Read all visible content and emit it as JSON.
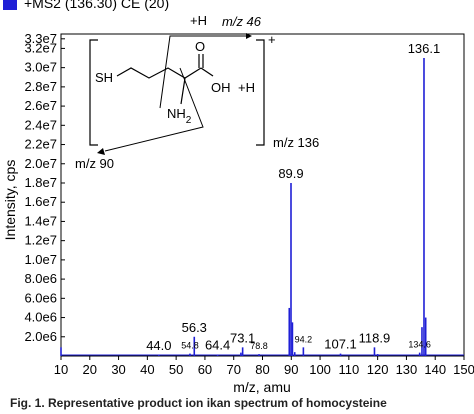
{
  "legend": {
    "label": "+MS2 (136.30) CE (20)",
    "color": "#1f1fd6"
  },
  "caption": "Fig. 1. Representative product ion ikan spectrum of homocysteine",
  "structure": {
    "sh": "SH",
    "nh2_n": "NH",
    "nh2_sub": "2",
    "oh": "OH",
    "o": "O",
    "plus_h_top": "+H",
    "plus_h_right": "+H",
    "charge": "+",
    "frag_top": "m/z 46",
    "frag_left": "m/z 90",
    "frag_right": "m/z 136"
  },
  "chart_data": {
    "type": "line",
    "title": "",
    "xlabel": "m/z, amu",
    "ylabel": "Intensity, cps",
    "xlim": [
      10,
      150
    ],
    "ylim": [
      0,
      33500000
    ],
    "x_ticks": [
      10,
      20,
      30,
      40,
      50,
      60,
      70,
      80,
      90,
      100,
      110,
      120,
      130,
      140,
      150
    ],
    "y_ticks": [
      {
        "v": 2000000,
        "label": "2.0e6"
      },
      {
        "v": 4000000,
        "label": "4.0e6"
      },
      {
        "v": 6000000,
        "label": "6.0e6"
      },
      {
        "v": 8000000,
        "label": "8.0e6"
      },
      {
        "v": 10000000,
        "label": "1.0e7"
      },
      {
        "v": 12000000,
        "label": "1.2e7"
      },
      {
        "v": 14000000,
        "label": "1.4e7"
      },
      {
        "v": 16000000,
        "label": "1.6e7"
      },
      {
        "v": 18000000,
        "label": "1.8e7"
      },
      {
        "v": 20000000,
        "label": "2.0e7"
      },
      {
        "v": 22000000,
        "label": "2.2e7"
      },
      {
        "v": 24000000,
        "label": "2.4e7"
      },
      {
        "v": 26000000,
        "label": "2.6e7"
      },
      {
        "v": 28000000,
        "label": "2.8e7"
      },
      {
        "v": 30000000,
        "label": "3.0e7"
      },
      {
        "v": 32000000,
        "label": "3.2e7"
      },
      {
        "v": 33000000,
        "label": "3.3e7"
      }
    ],
    "grid": false,
    "legend_position": "top-left",
    "series_color": "#1f1fd6",
    "peaks": [
      {
        "x": 10.0,
        "y": 900000
      },
      {
        "x": 44.0,
        "y": 100000
      },
      {
        "x": 54.8,
        "y": 250000
      },
      {
        "x": 56.3,
        "y": 2000000
      },
      {
        "x": 64.4,
        "y": 150000
      },
      {
        "x": 72.5,
        "y": 350000
      },
      {
        "x": 73.1,
        "y": 900000
      },
      {
        "x": 78.8,
        "y": 200000
      },
      {
        "x": 89.3,
        "y": 5000000
      },
      {
        "x": 89.9,
        "y": 18000000
      },
      {
        "x": 90.4,
        "y": 3500000
      },
      {
        "x": 91.2,
        "y": 400000
      },
      {
        "x": 94.2,
        "y": 900000
      },
      {
        "x": 107.1,
        "y": 250000
      },
      {
        "x": 118.9,
        "y": 900000
      },
      {
        "x": 120.0,
        "y": 200000
      },
      {
        "x": 134.6,
        "y": 350000
      },
      {
        "x": 135.4,
        "y": 3000000
      },
      {
        "x": 136.1,
        "y": 31000000
      },
      {
        "x": 136.7,
        "y": 4000000
      }
    ],
    "annotations": [
      {
        "x": 44.0,
        "y": 100000,
        "label": "44.0",
        "size": "normal"
      },
      {
        "x": 54.8,
        "y": 250000,
        "label": "54.8",
        "size": "small"
      },
      {
        "x": 56.3,
        "y": 2000000,
        "label": "56.3",
        "size": "normal"
      },
      {
        "x": 64.4,
        "y": 150000,
        "label": "64.4",
        "size": "normal"
      },
      {
        "x": 73.1,
        "y": 900000,
        "label": "73.1",
        "size": "normal"
      },
      {
        "x": 78.8,
        "y": 200000,
        "label": "78.8",
        "size": "small"
      },
      {
        "x": 89.9,
        "y": 18000000,
        "label": "89.9",
        "size": "normal"
      },
      {
        "x": 94.2,
        "y": 900000,
        "label": "94.2",
        "size": "small"
      },
      {
        "x": 107.1,
        "y": 250000,
        "label": "107.1",
        "size": "normal"
      },
      {
        "x": 118.9,
        "y": 900000,
        "label": "118.9",
        "size": "normal"
      },
      {
        "x": 134.6,
        "y": 350000,
        "label": "134.6",
        "size": "small"
      },
      {
        "x": 136.1,
        "y": 31000000,
        "label": "136.1",
        "size": "normal"
      }
    ]
  }
}
